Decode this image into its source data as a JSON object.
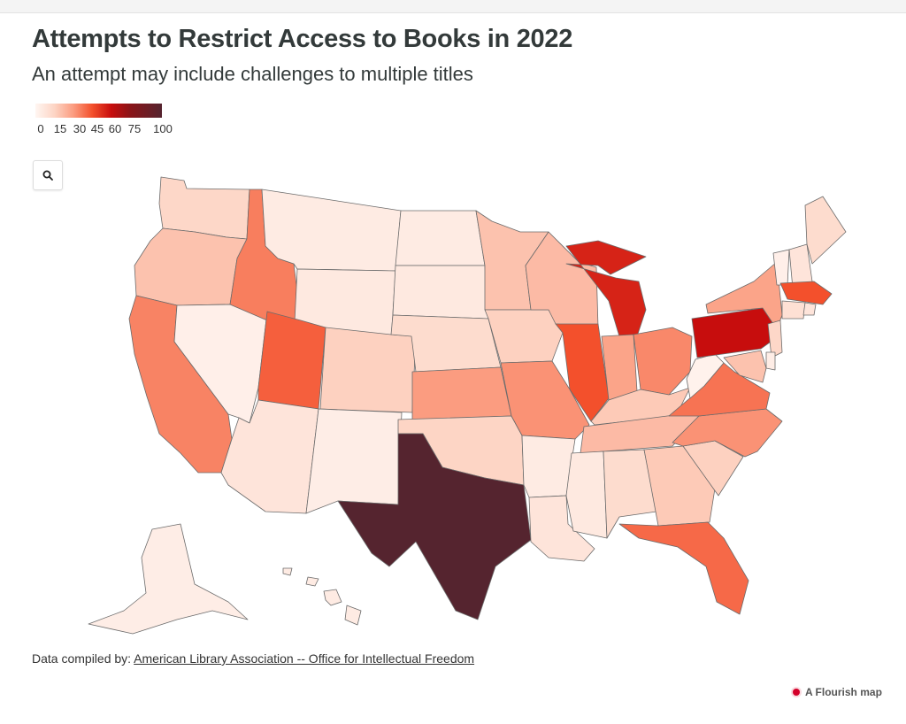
{
  "header": {
    "title": "Attempts to Restrict Access to Books in 2022",
    "subtitle": "An attempt may include challenges to multiple titles"
  },
  "legend": {
    "ticks": [
      "0",
      "15",
      "30",
      "45",
      "60",
      "75",
      "100"
    ],
    "tick_values": [
      0,
      15,
      30,
      45,
      60,
      75,
      100
    ],
    "colors": [
      "#fff6f2",
      "#fdd5c5",
      "#fb9c80",
      "#f3502c",
      "#c70d0d",
      "#55242f"
    ]
  },
  "zoom": {
    "icon": "search-icon"
  },
  "footer": {
    "source_prefix": "Data compiled by: ",
    "source_link": "American Library Association -- Office for Intellectual Freedom",
    "credit": "A Flourish map"
  },
  "chart_data": {
    "type": "choropleth",
    "value_range": [
      0,
      100
    ],
    "states": [
      {
        "code": "WA",
        "value": 14
      },
      {
        "code": "OR",
        "value": 20
      },
      {
        "code": "CA",
        "value": 35
      },
      {
        "code": "NV",
        "value": 3
      },
      {
        "code": "ID",
        "value": 36
      },
      {
        "code": "MT",
        "value": 5
      },
      {
        "code": "WY",
        "value": 6
      },
      {
        "code": "UT",
        "value": 42
      },
      {
        "code": "AZ",
        "value": 8
      },
      {
        "code": "CO",
        "value": 16
      },
      {
        "code": "NM",
        "value": 4
      },
      {
        "code": "ND",
        "value": 5
      },
      {
        "code": "SD",
        "value": 6
      },
      {
        "code": "NE",
        "value": 12
      },
      {
        "code": "KS",
        "value": 30
      },
      {
        "code": "OK",
        "value": 15
      },
      {
        "code": "TX",
        "value": 100
      },
      {
        "code": "MN",
        "value": 20
      },
      {
        "code": "IA",
        "value": 16
      },
      {
        "code": "MO",
        "value": 32
      },
      {
        "code": "AR",
        "value": 5
      },
      {
        "code": "LA",
        "value": 8
      },
      {
        "code": "WI",
        "value": 22
      },
      {
        "code": "IL",
        "value": 45
      },
      {
        "code": "MI",
        "value": 55
      },
      {
        "code": "IN",
        "value": 28
      },
      {
        "code": "OH",
        "value": 34
      },
      {
        "code": "KY",
        "value": 18
      },
      {
        "code": "TN",
        "value": 22
      },
      {
        "code": "MS",
        "value": 6
      },
      {
        "code": "AL",
        "value": 12
      },
      {
        "code": "GA",
        "value": 18
      },
      {
        "code": "FL",
        "value": 40
      },
      {
        "code": "SC",
        "value": 16
      },
      {
        "code": "NC",
        "value": 32
      },
      {
        "code": "VA",
        "value": 38
      },
      {
        "code": "WV",
        "value": 2
      },
      {
        "code": "PA",
        "value": 60
      },
      {
        "code": "NY",
        "value": 28
      },
      {
        "code": "ME",
        "value": 12
      },
      {
        "code": "VT",
        "value": 3
      },
      {
        "code": "NH",
        "value": 8
      },
      {
        "code": "MA",
        "value": 45
      },
      {
        "code": "CT",
        "value": 10
      },
      {
        "code": "RI",
        "value": 8
      },
      {
        "code": "NJ",
        "value": 14
      },
      {
        "code": "DE",
        "value": 4
      },
      {
        "code": "MD",
        "value": 20
      },
      {
        "code": "AK",
        "value": 4
      },
      {
        "code": "HI",
        "value": 5
      }
    ]
  }
}
